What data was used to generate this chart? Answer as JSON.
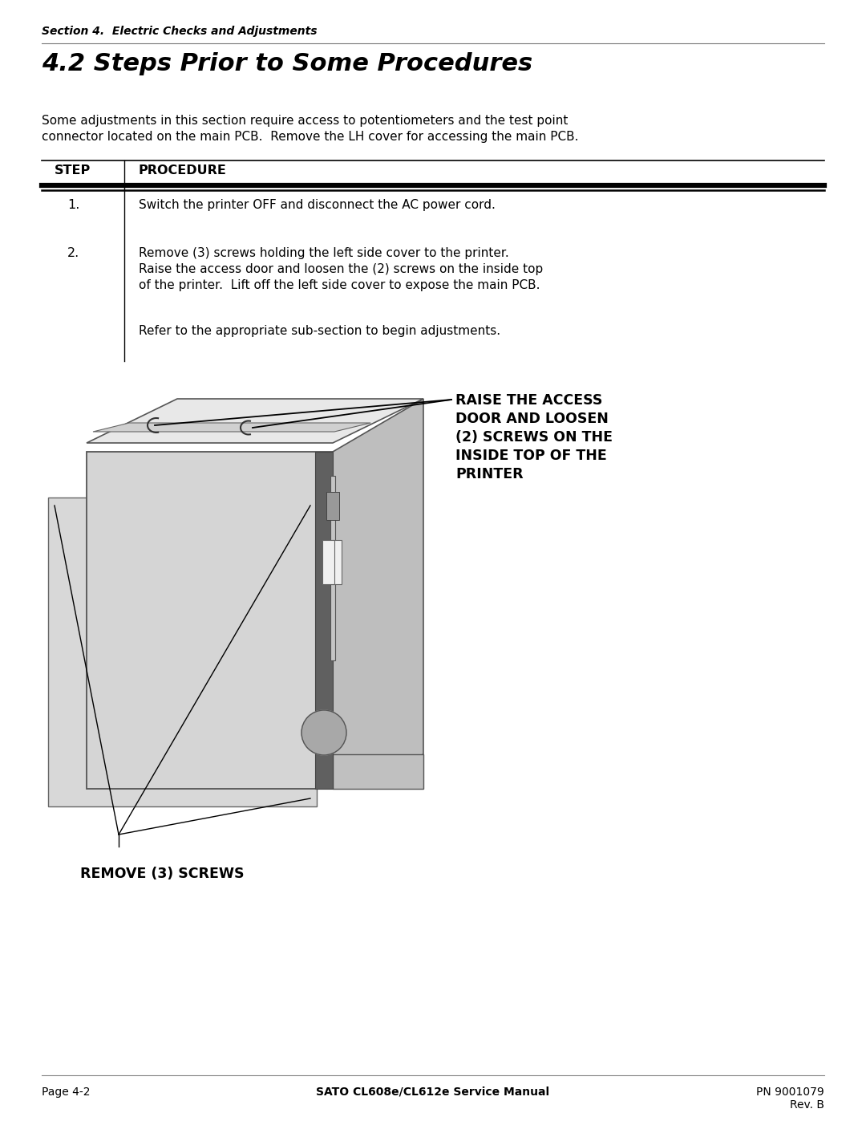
{
  "bg_color": "#ffffff",
  "section_label": "Section 4.  Electric Checks and Adjustments",
  "title": "4.2 Steps Prior to Some Procedures",
  "intro_line1": "Some adjustments in this section require access to potentiometers and the test point",
  "intro_line2": "connector located on the main PCB.  Remove the LH cover for accessing the main PCB.",
  "table_header_step": "STEP",
  "table_header_proc": "PROCEDURE",
  "step1_num": "1.",
  "step1_text": "Switch the printer OFF and disconnect the AC power cord.",
  "step2_num": "2.",
  "step2_line1": "Remove (3) screws holding the left side cover to the printer.",
  "step2_line2": "Raise the access door and loosen the (2) screws on the inside top",
  "step2_line3": "of the printer.  Lift off the left side cover to expose the main PCB.",
  "step3_text": "Refer to the appropriate sub-section to begin adjustments.",
  "callout_top_lines": [
    "RAISE THE ACCESS",
    "DOOR AND LOOSEN",
    "(2) SCREWS ON THE",
    "INSIDE TOP OF THE",
    "PRINTER"
  ],
  "callout_bottom": "REMOVE (3) SCREWS",
  "footer_left": "Page 4-2",
  "footer_center": "SATO CL608e/CL612e Service Manual",
  "footer_right1": "PN 9001079",
  "footer_right2": "Rev. B",
  "font_color": "#000000"
}
